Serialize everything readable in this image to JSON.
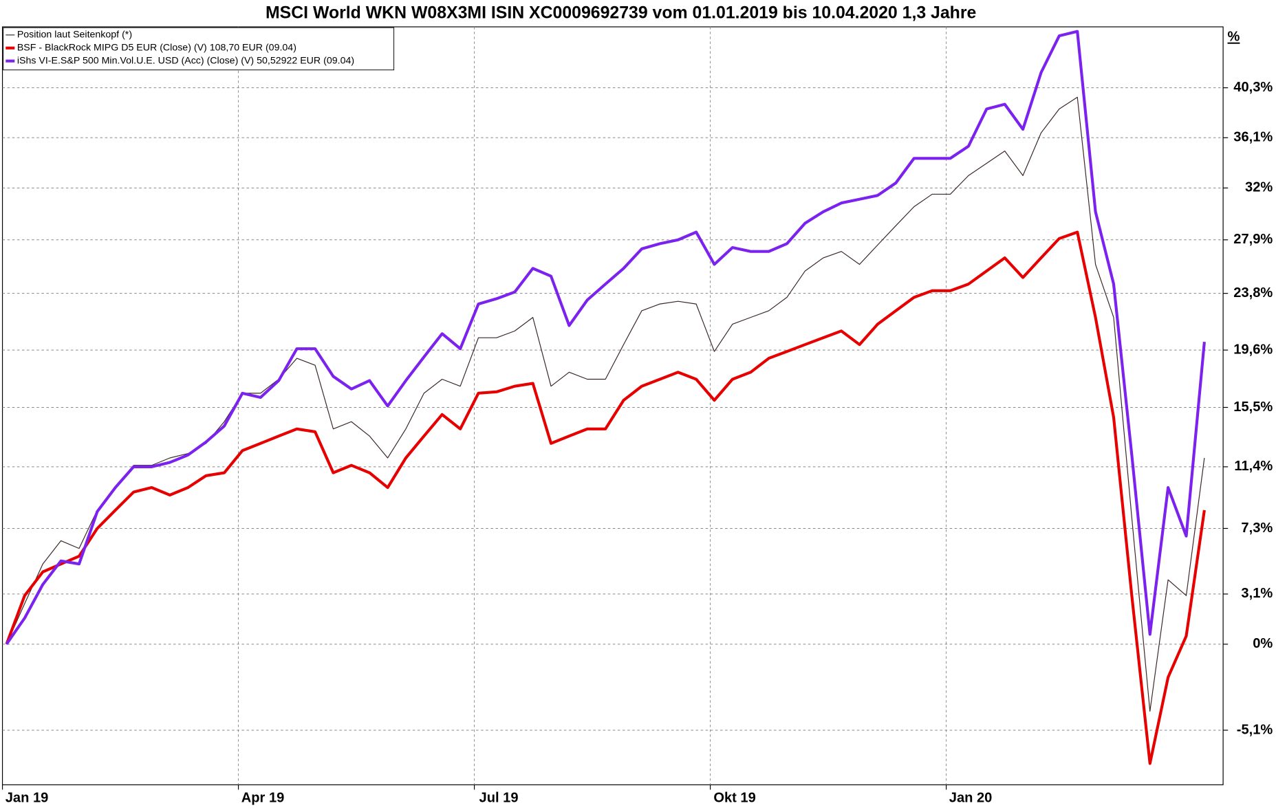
{
  "chart_data": {
    "type": "line",
    "title": "MSCI World WKN W08X3MI ISIN XC0009692739 vom 01.01.2019 bis 10.04.2020 1,3 Jahre",
    "y_label": "%",
    "log_scale": true,
    "grid": true,
    "legend": "top-left",
    "categories": [
      "Jan 19",
      null,
      null,
      null,
      null,
      null,
      null,
      null,
      null,
      null,
      null,
      null,
      null,
      "Apr 19",
      null,
      null,
      null,
      null,
      null,
      null,
      null,
      null,
      null,
      null,
      null,
      null,
      "Jul 19",
      null,
      null,
      null,
      null,
      null,
      null,
      null,
      null,
      null,
      null,
      null,
      null,
      "Okt 19",
      null,
      null,
      null,
      null,
      null,
      null,
      null,
      null,
      null,
      null,
      null,
      null,
      "Jan 20",
      null,
      null,
      null,
      null,
      null,
      null,
      null,
      null,
      null,
      null,
      null,
      null,
      null,
      null
    ],
    "ylim": [
      -8.2,
      45.6
    ],
    "yticks": [
      {
        "value": -5.1,
        "label": "-5,1%"
      },
      {
        "value": 0,
        "label": "0%"
      },
      {
        "value": 3.1,
        "label": "3,1%"
      },
      {
        "value": 7.3,
        "label": "7,3%"
      },
      {
        "value": 11.4,
        "label": "11,4%"
      },
      {
        "value": 15.5,
        "label": "15,5%"
      },
      {
        "value": 19.6,
        "label": "19,6%"
      },
      {
        "value": 23.8,
        "label": "23,8%"
      },
      {
        "value": 27.9,
        "label": "27,9%"
      },
      {
        "value": 32,
        "label": "32%"
      },
      {
        "value": 36.1,
        "label": "36,1%"
      },
      {
        "value": 40.3,
        "label": "40,3%"
      }
    ],
    "series": [
      {
        "name": "Position laut Seitenkopf (*)",
        "color": "#3b2626",
        "values": [
          0,
          2.5,
          5,
          6.5,
          6,
          8.5,
          10,
          11.5,
          11.5,
          12,
          12.3,
          13,
          14.5,
          16.5,
          16.5,
          17.5,
          19,
          18.5,
          14,
          14.5,
          13.5,
          12,
          14,
          16.5,
          17.5,
          17,
          20.5,
          20.5,
          21,
          22,
          17,
          18,
          17.5,
          17.5,
          20,
          22.5,
          23,
          23.2,
          23,
          19.5,
          21.5,
          22,
          22.5,
          23.5,
          25.5,
          26.5,
          27,
          26,
          27.5,
          29,
          30.5,
          31.5,
          31.5,
          33,
          34,
          35,
          33,
          36.5,
          38.5,
          39.5,
          26,
          22,
          8,
          -4,
          4,
          3,
          12
        ]
      },
      {
        "name": "BSF - BlackRock MIPG D5 EUR (Close) (V) 108,70 EUR (09.04)",
        "color": "#e60000",
        "values": [
          0,
          3,
          4.5,
          5,
          5.5,
          7.3,
          8.5,
          9.7,
          10,
          9.5,
          10,
          10.8,
          11,
          12.5,
          13,
          13.5,
          14,
          13.8,
          11,
          11.5,
          11,
          10,
          12,
          13.5,
          15,
          14,
          16.5,
          16.6,
          17,
          17.2,
          13,
          13.5,
          14,
          14,
          16,
          17,
          17.5,
          18,
          17.5,
          16,
          17.5,
          18,
          19,
          19.5,
          20,
          20.5,
          21,
          20,
          21.5,
          22.5,
          23.5,
          24,
          24,
          24.5,
          25.5,
          26.5,
          25,
          26.5,
          28,
          28.5,
          22,
          14.8,
          3,
          -7,
          -2,
          0.5,
          8.5
        ]
      },
      {
        "name": "iShs VI-E.S&P 500 Min.Vol.U.E. USD (Acc) (Close) (V) 50,52922 EUR (09.04)",
        "color": "#7b22ee",
        "values": [
          0,
          1.6,
          3.7,
          5.2,
          5,
          8.4,
          10,
          11.4,
          11.4,
          11.7,
          12.2,
          13.1,
          14.2,
          16.5,
          16.2,
          17.4,
          19.7,
          19.7,
          17.7,
          16.8,
          17.4,
          15.6,
          17.4,
          19.1,
          20.8,
          19.7,
          23,
          23.4,
          23.9,
          25.7,
          25.1,
          21.4,
          23.3,
          24.5,
          25.7,
          27.2,
          27.6,
          27.9,
          28.5,
          26,
          27.3,
          27,
          27,
          27.6,
          29.2,
          30.1,
          30.8,
          31.1,
          31.4,
          32.4,
          34.4,
          34.4,
          34.4,
          35.4,
          38.5,
          38.9,
          36.8,
          41.6,
          44.8,
          45.2,
          30.1,
          24.5,
          12.2,
          0.6,
          10,
          6.8,
          20.2
        ]
      }
    ]
  }
}
